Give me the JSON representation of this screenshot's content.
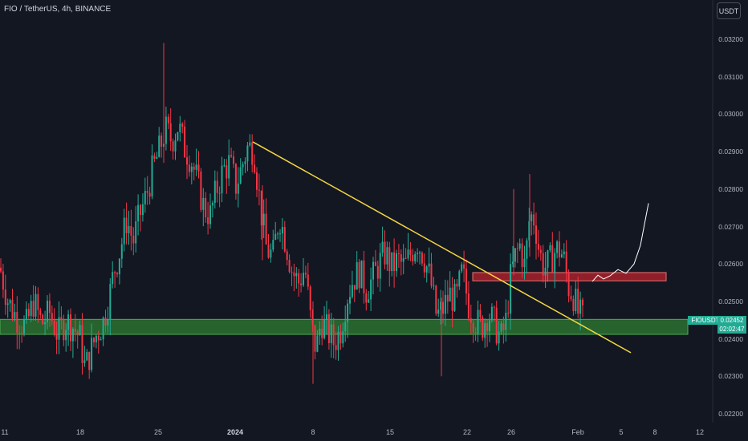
{
  "header": {
    "title": "FIO / TetherUS, 4h, BINANCE",
    "currency_button": "USDT"
  },
  "price_tag": {
    "symbol": "FIOUSDT",
    "price": "0.02452",
    "countdown": "02:02:47"
  },
  "colors": {
    "background": "#131722",
    "up": "#22ab94",
    "down": "#f23645",
    "trendline": "#f5d742",
    "support_zone": "#2e7d32",
    "resistance_zone": "#b2222d"
  },
  "chart_data": {
    "type": "candlestick",
    "symbol": "FIO / TetherUS",
    "timeframe": "4h",
    "exchange": "BINANCE",
    "ylim": [
      0.0217,
      0.0325
    ],
    "xlim": [
      0,
      932
    ],
    "y_ticks": [
      "0.03200",
      "0.03100",
      "0.03000",
      "0.02900",
      "0.02800",
      "0.02700",
      "0.02600",
      "0.02500",
      "0.02400",
      "0.02300",
      "0.02200"
    ],
    "x_ticks": [
      {
        "label": "11",
        "x": 2,
        "bold": false
      },
      {
        "label": "18",
        "x": 100,
        "bold": false
      },
      {
        "label": "25",
        "x": 197,
        "bold": false
      },
      {
        "label": "2024",
        "x": 293,
        "bold": true
      },
      {
        "label": "8",
        "x": 390,
        "bold": false
      },
      {
        "label": "15",
        "x": 486,
        "bold": false
      },
      {
        "label": "22",
        "x": 582,
        "bold": false
      },
      {
        "label": "26",
        "x": 637,
        "bold": false
      },
      {
        "label": "Feb",
        "x": 720,
        "bold": false
      },
      {
        "label": "5",
        "x": 774,
        "bold": false
      },
      {
        "label": "8",
        "x": 816,
        "bold": false
      },
      {
        "label": "12",
        "x": 872,
        "bold": false
      }
    ],
    "close_path": [
      [
        0,
        0.0259
      ],
      [
        10,
        0.025
      ],
      [
        20,
        0.0246
      ],
      [
        32,
        0.0243
      ],
      [
        42,
        0.025
      ],
      [
        52,
        0.0244
      ],
      [
        62,
        0.0247
      ],
      [
        72,
        0.0241
      ],
      [
        82,
        0.0245
      ],
      [
        92,
        0.0243
      ],
      [
        100,
        0.024
      ],
      [
        106,
        0.0232
      ],
      [
        112,
        0.0236
      ],
      [
        120,
        0.0241
      ],
      [
        128,
        0.0244
      ],
      [
        136,
        0.0251
      ],
      [
        142,
        0.0258
      ],
      [
        150,
        0.0264
      ],
      [
        158,
        0.0272
      ],
      [
        166,
        0.0266
      ],
      [
        174,
        0.0273
      ],
      [
        182,
        0.0278
      ],
      [
        190,
        0.0285
      ],
      [
        198,
        0.029
      ],
      [
        206,
        0.0296
      ],
      [
        214,
        0.0293
      ],
      [
        222,
        0.0297
      ],
      [
        230,
        0.0291
      ],
      [
        238,
        0.0288
      ],
      [
        246,
        0.0282
      ],
      [
        254,
        0.0275
      ],
      [
        262,
        0.0273
      ],
      [
        270,
        0.028
      ],
      [
        278,
        0.0285
      ],
      [
        286,
        0.0287
      ],
      [
        294,
        0.0281
      ],
      [
        300,
        0.0285
      ],
      [
        308,
        0.0291
      ],
      [
        316,
        0.0291
      ],
      [
        324,
        0.0276
      ],
      [
        332,
        0.0264
      ],
      [
        340,
        0.0262
      ],
      [
        348,
        0.0273
      ],
      [
        356,
        0.0266
      ],
      [
        364,
        0.0258
      ],
      [
        372,
        0.0255
      ],
      [
        380,
        0.0259
      ],
      [
        388,
        0.0243
      ],
      [
        394,
        0.0237
      ],
      [
        400,
        0.0245
      ],
      [
        408,
        0.0242
      ],
      [
        416,
        0.0239
      ],
      [
        424,
        0.0242
      ],
      [
        432,
        0.0251
      ],
      [
        440,
        0.0256
      ],
      [
        448,
        0.0258
      ],
      [
        456,
        0.0253
      ],
      [
        464,
        0.0256
      ],
      [
        472,
        0.026
      ],
      [
        480,
        0.0263
      ],
      [
        488,
        0.0259
      ],
      [
        496,
        0.0261
      ],
      [
        504,
        0.0259
      ],
      [
        512,
        0.0263
      ],
      [
        520,
        0.0266
      ],
      [
        528,
        0.0262
      ],
      [
        536,
        0.0256
      ],
      [
        544,
        0.0246
      ],
      [
        552,
        0.0248
      ],
      [
        560,
        0.0252
      ],
      [
        568,
        0.025
      ],
      [
        576,
        0.0258
      ],
      [
        584,
        0.0249
      ],
      [
        592,
        0.0245
      ],
      [
        600,
        0.0243
      ],
      [
        608,
        0.0247
      ],
      [
        616,
        0.0244
      ],
      [
        624,
        0.024
      ],
      [
        630,
        0.0244
      ],
      [
        636,
        0.0256
      ],
      [
        642,
        0.0262
      ],
      [
        648,
        0.0265
      ],
      [
        654,
        0.0259
      ],
      [
        660,
        0.0273
      ],
      [
        666,
        0.0272
      ],
      [
        672,
        0.0263
      ],
      [
        678,
        0.0259
      ],
      [
        684,
        0.026
      ],
      [
        690,
        0.0263
      ],
      [
        696,
        0.0264
      ],
      [
        702,
        0.0262
      ],
      [
        708,
        0.0254
      ],
      [
        714,
        0.0252
      ],
      [
        720,
        0.0247
      ],
      [
        726,
        0.02452
      ]
    ],
    "annotations": {
      "trendline": {
        "from": [
          315,
          0.02926
        ],
        "to": [
          786,
          0.02363
        ]
      },
      "support_zone": {
        "x_from": 0,
        "x_to": 857,
        "y_from": 0.02412,
        "y_to": 0.02452
      },
      "resistance_zone": {
        "x_from": 589,
        "x_to": 830,
        "y_from": 0.02555,
        "y_to": 0.02577
      },
      "projection_path": [
        [
          738,
          0.02553
        ],
        [
          745,
          0.0257
        ],
        [
          752,
          0.0256
        ],
        [
          760,
          0.02568
        ],
        [
          770,
          0.02585
        ],
        [
          780,
          0.02575
        ],
        [
          790,
          0.026
        ],
        [
          798,
          0.0265
        ],
        [
          808,
          0.02762
        ]
      ]
    }
  }
}
